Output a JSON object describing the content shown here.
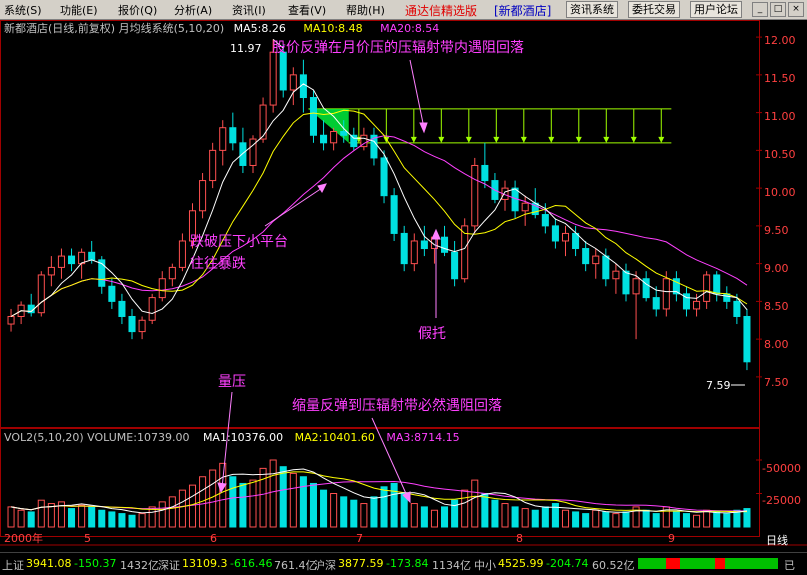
{
  "menubar": {
    "items": [
      "系统(S)",
      "功能(E)",
      "报价(Q)",
      "分析(A)",
      "资讯(I)",
      "查看(V)",
      "帮助(H)"
    ],
    "brand": "通达信精选版",
    "brand_stock": "[新都酒店]",
    "buttons": [
      "资讯系统",
      "委托交易",
      "用户论坛"
    ],
    "window_controls": [
      "_",
      "□",
      "×"
    ]
  },
  "main_chart": {
    "title": "新都酒店(日线,前复权) 月均线系统(5,10,20)",
    "ma5": "MA5:8.26",
    "ma10": "MA10:8.48",
    "ma20": "MA20:8.54",
    "price_ticks": [
      "12.00",
      "11.50",
      "11.00",
      "10.50",
      "10.00",
      "9.50",
      "9.00",
      "8.50",
      "8.00",
      "7.50"
    ],
    "high_label": "11.97",
    "low_label": "7.59",
    "annotations": {
      "resistance": "股价反弹在月价压的压辐射带内遇阻回落",
      "breakdown_line1": "跌破压下小平台",
      "breakdown_line2": "往往暴跌",
      "fake_support": "假托"
    }
  },
  "volume_chart": {
    "title": "VOL2(5,10,20) VOLUME:10739.00",
    "ma1": "MA1:10376.00",
    "ma2": "MA2:10401.60",
    "ma3": "MA3:8714.15",
    "ticks": [
      "-50000",
      "-25000"
    ],
    "annotations": {
      "pressure": "量压",
      "shrink": "缩量反弹到压辐射带必然遇阻回落"
    }
  },
  "date_axis": [
    "2000年",
    "5",
    "6",
    "7",
    "8",
    "9"
  ],
  "period_label": "日线",
  "status_bar": {
    "sh_label": "上证",
    "sh_value": "3941.08",
    "sh_change": "-150.37",
    "sh_amount": "1432亿",
    "sz_label": "深证",
    "sz_value": "13109.3",
    "sz_change": "-616.46",
    "sz_amount": "761.4亿",
    "hs_label": "沪深",
    "hs_value": "3877.59",
    "hs_change": "-173.84",
    "hs_amount": "1134亿",
    "zx_label": "中小",
    "zx_value": "4525.99",
    "zx_change": "-204.74",
    "zx_amount": "60.52亿",
    "connection": "已"
  },
  "colors": {
    "up": "#ff5050",
    "down": "#00e0e0",
    "ma5": "#ffffff",
    "ma10": "#ffff00",
    "ma20": "#ff40ff",
    "annotation": "#ff40ff",
    "band": "#a0ff00"
  },
  "chart_data": {
    "type": "candlestick",
    "title": "新都酒店(日线,前复权) 月均线系统(5,10,20)",
    "price_range": [
      7.3,
      12.2
    ],
    "volume_ticks": [
      25000,
      50000
    ],
    "high": 11.97,
    "low": 7.59,
    "resistance_band": [
      10.6,
      11.05
    ],
    "ohlc": [
      [
        8.2,
        8.4,
        8.1,
        8.3
      ],
      [
        8.3,
        8.5,
        8.2,
        8.45
      ],
      [
        8.45,
        8.6,
        8.3,
        8.35
      ],
      [
        8.35,
        8.9,
        8.3,
        8.85
      ],
      [
        8.85,
        9.1,
        8.7,
        8.95
      ],
      [
        8.95,
        9.2,
        8.8,
        9.1
      ],
      [
        9.1,
        9.2,
        8.9,
        9.0
      ],
      [
        9.0,
        9.2,
        8.8,
        9.15
      ],
      [
        9.15,
        9.3,
        9.0,
        9.05
      ],
      [
        9.05,
        9.1,
        8.6,
        8.7
      ],
      [
        8.7,
        8.8,
        8.4,
        8.5
      ],
      [
        8.5,
        8.6,
        8.2,
        8.3
      ],
      [
        8.3,
        8.4,
        8.0,
        8.1
      ],
      [
        8.1,
        8.3,
        8.0,
        8.25
      ],
      [
        8.25,
        8.6,
        8.2,
        8.55
      ],
      [
        8.55,
        8.9,
        8.5,
        8.8
      ],
      [
        8.8,
        9.0,
        8.7,
        8.95
      ],
      [
        8.95,
        9.4,
        8.9,
        9.3
      ],
      [
        9.3,
        9.8,
        9.2,
        9.7
      ],
      [
        9.7,
        10.2,
        9.6,
        10.1
      ],
      [
        10.1,
        10.6,
        10.0,
        10.5
      ],
      [
        10.5,
        10.9,
        10.3,
        10.8
      ],
      [
        10.8,
        11.0,
        10.5,
        10.6
      ],
      [
        10.6,
        10.8,
        10.2,
        10.3
      ],
      [
        10.3,
        10.7,
        10.2,
        10.65
      ],
      [
        10.65,
        11.2,
        10.6,
        11.1
      ],
      [
        11.1,
        11.97,
        11.0,
        11.8
      ],
      [
        11.8,
        11.9,
        11.2,
        11.3
      ],
      [
        11.3,
        11.6,
        11.1,
        11.5
      ],
      [
        11.5,
        11.7,
        11.0,
        11.2
      ],
      [
        11.2,
        11.3,
        10.6,
        10.7
      ],
      [
        10.7,
        10.9,
        10.5,
        10.6
      ],
      [
        10.6,
        10.8,
        10.5,
        10.75
      ],
      [
        10.75,
        10.9,
        10.6,
        10.7
      ],
      [
        10.7,
        10.8,
        10.5,
        10.55
      ],
      [
        10.55,
        10.8,
        10.5,
        10.7
      ],
      [
        10.7,
        10.8,
        10.3,
        10.4
      ],
      [
        10.4,
        10.5,
        9.8,
        9.9
      ],
      [
        9.9,
        10.0,
        9.3,
        9.4
      ],
      [
        9.4,
        9.5,
        8.9,
        9.0
      ],
      [
        9.0,
        9.4,
        8.9,
        9.3
      ],
      [
        9.3,
        9.5,
        9.1,
        9.2
      ],
      [
        9.2,
        9.4,
        9.0,
        9.35
      ],
      [
        9.35,
        9.5,
        9.1,
        9.15
      ],
      [
        9.15,
        9.3,
        8.7,
        8.8
      ],
      [
        8.8,
        9.6,
        8.75,
        9.5
      ],
      [
        9.5,
        10.4,
        9.4,
        10.3
      ],
      [
        10.3,
        10.6,
        10.0,
        10.1
      ],
      [
        10.1,
        10.2,
        9.8,
        9.85
      ],
      [
        9.85,
        10.1,
        9.7,
        10.0
      ],
      [
        10.0,
        10.1,
        9.6,
        9.7
      ],
      [
        9.7,
        9.9,
        9.5,
        9.8
      ],
      [
        9.8,
        10.0,
        9.6,
        9.65
      ],
      [
        9.65,
        9.8,
        9.4,
        9.5
      ],
      [
        9.5,
        9.6,
        9.2,
        9.3
      ],
      [
        9.3,
        9.5,
        9.1,
        9.4
      ],
      [
        9.4,
        9.5,
        9.1,
        9.2
      ],
      [
        9.2,
        9.3,
        8.9,
        9.0
      ],
      [
        9.0,
        9.2,
        8.8,
        9.1
      ],
      [
        9.1,
        9.2,
        8.7,
        8.8
      ],
      [
        8.8,
        9.0,
        8.6,
        8.9
      ],
      [
        8.9,
        9.0,
        8.5,
        8.6
      ],
      [
        8.6,
        8.9,
        8.0,
        8.8
      ],
      [
        8.8,
        8.9,
        8.5,
        8.55
      ],
      [
        8.55,
        8.7,
        8.3,
        8.4
      ],
      [
        8.4,
        8.9,
        8.3,
        8.8
      ],
      [
        8.8,
        8.9,
        8.5,
        8.6
      ],
      [
        8.6,
        8.7,
        8.3,
        8.4
      ],
      [
        8.4,
        8.6,
        8.3,
        8.5
      ],
      [
        8.5,
        8.9,
        8.4,
        8.85
      ],
      [
        8.85,
        8.9,
        8.5,
        8.6
      ],
      [
        8.6,
        8.7,
        8.4,
        8.5
      ],
      [
        8.5,
        8.6,
        8.2,
        8.3
      ],
      [
        8.3,
        8.4,
        7.59,
        7.7
      ]
    ],
    "volume": [
      12,
      10,
      9,
      16,
      14,
      15,
      11,
      13,
      12,
      10,
      9,
      8,
      7,
      8,
      12,
      15,
      18,
      22,
      25,
      30,
      34,
      38,
      30,
      26,
      28,
      35,
      40,
      36,
      32,
      30,
      26,
      22,
      20,
      18,
      16,
      14,
      18,
      24,
      26,
      20,
      14,
      12,
      10,
      12,
      16,
      22,
      28,
      20,
      16,
      14,
      12,
      11,
      10,
      12,
      14,
      10,
      9,
      8,
      10,
      9,
      8,
      9,
      12,
      10,
      8,
      12,
      9,
      8,
      7,
      10,
      9,
      8,
      10,
      11
    ]
  }
}
